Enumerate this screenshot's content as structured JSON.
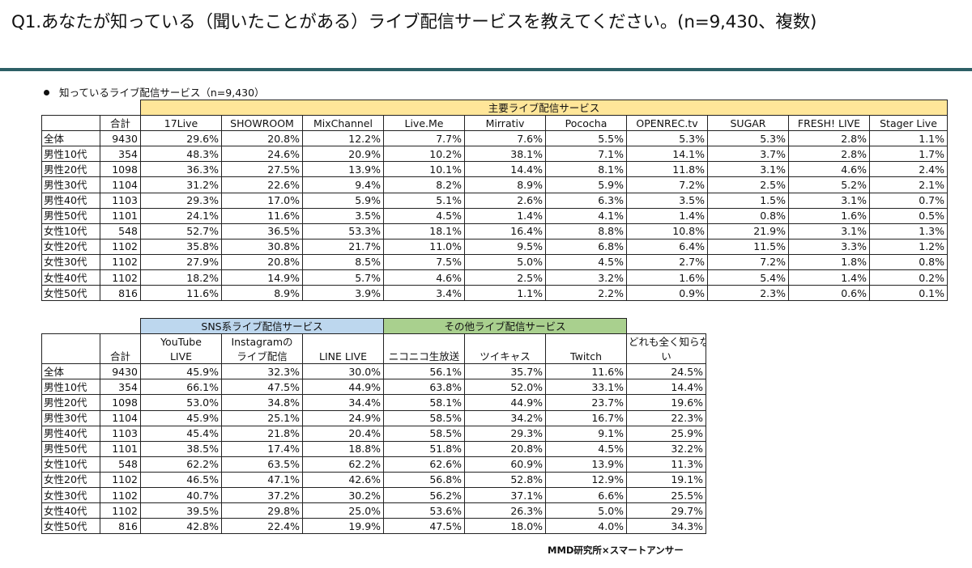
{
  "title": "Q1.あなたが知っている（聞いたことがある）ライブ配信サービスを教えてください。(n=9,430、複数)",
  "subtitle": "知っているライブ配信サービス（n=9,430）",
  "table1": {
    "group_header": "主要ライブ配信サービス",
    "total_label": "合計",
    "columns": [
      "17Live",
      "SHOWROOM",
      "MixChannel",
      "Live.Me",
      "Mirrativ",
      "Pococha",
      "OPENREC.tv",
      "SUGAR",
      "FRESH! LIVE",
      "Stager Live"
    ],
    "rows": [
      {
        "label": "全体",
        "n": "9430",
        "values": [
          "29.6%",
          "20.8%",
          "12.2%",
          "7.7%",
          "7.6%",
          "5.5%",
          "5.3%",
          "5.3%",
          "2.8%",
          "1.1%"
        ]
      },
      {
        "label": "男性10代",
        "n": "354",
        "values": [
          "48.3%",
          "24.6%",
          "20.9%",
          "10.2%",
          "38.1%",
          "7.1%",
          "14.1%",
          "3.7%",
          "2.8%",
          "1.7%"
        ]
      },
      {
        "label": "男性20代",
        "n": "1098",
        "values": [
          "36.3%",
          "27.5%",
          "13.9%",
          "10.1%",
          "14.4%",
          "8.1%",
          "11.8%",
          "3.1%",
          "4.6%",
          "2.4%"
        ]
      },
      {
        "label": "男性30代",
        "n": "1104",
        "values": [
          "31.2%",
          "22.6%",
          "9.4%",
          "8.2%",
          "8.9%",
          "5.9%",
          "7.2%",
          "2.5%",
          "5.2%",
          "2.1%"
        ]
      },
      {
        "label": "男性40代",
        "n": "1103",
        "values": [
          "29.3%",
          "17.0%",
          "5.9%",
          "5.1%",
          "2.6%",
          "6.3%",
          "3.5%",
          "1.5%",
          "3.1%",
          "0.7%"
        ]
      },
      {
        "label": "男性50代",
        "n": "1101",
        "values": [
          "24.1%",
          "11.6%",
          "3.5%",
          "4.5%",
          "1.4%",
          "4.1%",
          "1.4%",
          "0.8%",
          "1.6%",
          "0.5%"
        ]
      },
      {
        "label": "女性10代",
        "n": "548",
        "values": [
          "52.7%",
          "36.5%",
          "53.3%",
          "18.1%",
          "16.4%",
          "8.8%",
          "10.8%",
          "21.9%",
          "3.1%",
          "1.3%"
        ]
      },
      {
        "label": "女性20代",
        "n": "1102",
        "values": [
          "35.8%",
          "30.8%",
          "21.7%",
          "11.0%",
          "9.5%",
          "6.8%",
          "6.4%",
          "11.5%",
          "3.3%",
          "1.2%"
        ]
      },
      {
        "label": "女性30代",
        "n": "1102",
        "values": [
          "27.9%",
          "20.8%",
          "8.5%",
          "7.5%",
          "5.0%",
          "4.5%",
          "2.7%",
          "7.2%",
          "1.8%",
          "0.8%"
        ]
      },
      {
        "label": "女性40代",
        "n": "1102",
        "values": [
          "18.2%",
          "14.9%",
          "5.7%",
          "4.6%",
          "2.5%",
          "3.2%",
          "1.6%",
          "5.4%",
          "1.4%",
          "0.2%"
        ]
      },
      {
        "label": "女性50代",
        "n": "816",
        "values": [
          "11.6%",
          "8.9%",
          "3.9%",
          "3.4%",
          "1.1%",
          "2.2%",
          "0.9%",
          "2.3%",
          "0.6%",
          "0.1%"
        ]
      }
    ]
  },
  "table2": {
    "sns_header": "SNS系ライブ配信サービス",
    "other_header": "その他ライブ配信サービス",
    "total_label": "合計",
    "columns": [
      {
        "line1": "YouTube",
        "line2": "LIVE"
      },
      {
        "line1": "Instagramの",
        "line2": "ライブ配信"
      },
      {
        "line1": "",
        "line2": "LINE LIVE"
      },
      {
        "line1": "",
        "line2": "ニコニコ生放送"
      },
      {
        "line1": "",
        "line2": "ツイキャス"
      },
      {
        "line1": "",
        "line2": "Twitch"
      },
      {
        "line1": "どれも全く知らな",
        "line2": "い"
      }
    ],
    "rows": [
      {
        "label": "全体",
        "n": "9430",
        "values": [
          "45.9%",
          "32.3%",
          "30.0%",
          "56.1%",
          "35.7%",
          "11.6%",
          "24.5%"
        ]
      },
      {
        "label": "男性10代",
        "n": "354",
        "values": [
          "66.1%",
          "47.5%",
          "44.9%",
          "63.8%",
          "52.0%",
          "33.1%",
          "14.4%"
        ]
      },
      {
        "label": "男性20代",
        "n": "1098",
        "values": [
          "53.0%",
          "34.8%",
          "34.4%",
          "58.1%",
          "44.9%",
          "23.7%",
          "19.6%"
        ]
      },
      {
        "label": "男性30代",
        "n": "1104",
        "values": [
          "45.9%",
          "25.1%",
          "24.9%",
          "58.5%",
          "34.2%",
          "16.7%",
          "22.3%"
        ]
      },
      {
        "label": "男性40代",
        "n": "1103",
        "values": [
          "45.4%",
          "21.8%",
          "20.4%",
          "58.5%",
          "29.3%",
          "9.1%",
          "25.9%"
        ]
      },
      {
        "label": "男性50代",
        "n": "1101",
        "values": [
          "38.5%",
          "17.4%",
          "18.8%",
          "51.8%",
          "20.8%",
          "4.5%",
          "32.2%"
        ]
      },
      {
        "label": "女性10代",
        "n": "548",
        "values": [
          "62.2%",
          "63.5%",
          "62.2%",
          "62.6%",
          "60.9%",
          "13.9%",
          "11.3%"
        ]
      },
      {
        "label": "女性20代",
        "n": "1102",
        "values": [
          "46.5%",
          "47.1%",
          "42.6%",
          "56.8%",
          "52.8%",
          "12.9%",
          "19.1%"
        ]
      },
      {
        "label": "女性30代",
        "n": "1102",
        "values": [
          "40.7%",
          "37.2%",
          "30.2%",
          "56.2%",
          "37.1%",
          "6.6%",
          "25.5%"
        ]
      },
      {
        "label": "女性40代",
        "n": "1102",
        "values": [
          "39.5%",
          "29.8%",
          "25.0%",
          "53.6%",
          "26.3%",
          "5.0%",
          "29.7%"
        ]
      },
      {
        "label": "女性50代",
        "n": "816",
        "values": [
          "42.8%",
          "22.4%",
          "19.9%",
          "47.5%",
          "18.0%",
          "4.0%",
          "34.3%"
        ]
      }
    ]
  },
  "credit": "MMD研究所×スマートアンサー"
}
